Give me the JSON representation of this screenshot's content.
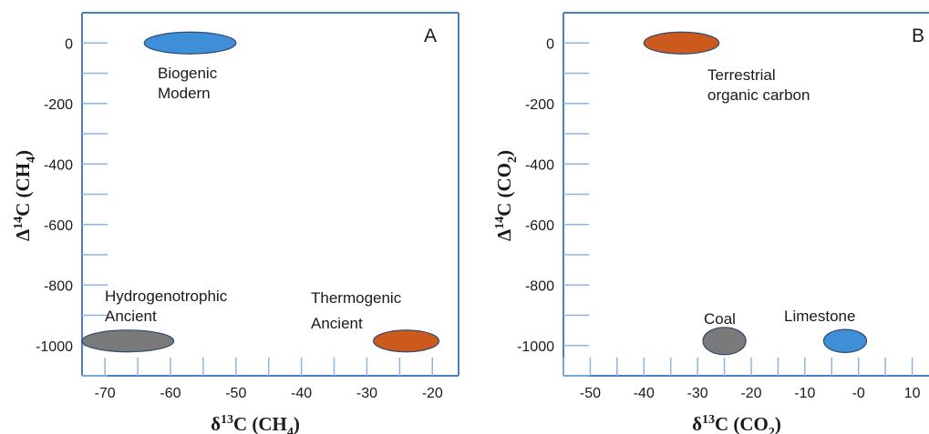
{
  "chart_data": [
    {
      "type": "scatter",
      "panel_label": "A",
      "xlabel": {
        "main": "δ",
        "sup": "13",
        "rest": "C (CH",
        "sub": "4",
        "end": ")"
      },
      "ylabel": {
        "main": "Δ",
        "sup": "14",
        "rest": "C (CH",
        "sub": "4",
        "end": ")"
      },
      "xlim": [
        -73.5,
        -16
      ],
      "ylim": [
        -1100,
        100
      ],
      "x_ticks": [
        -70,
        -60,
        -50,
        -40,
        -30,
        -20
      ],
      "y_ticks": [
        0,
        -200,
        -400,
        -600,
        -800,
        -1000
      ],
      "regions": [
        {
          "label": [
            "Biogenic",
            "Modern"
          ],
          "x": -57,
          "y": 0,
          "x_halfwidth": 7,
          "y_halfwidth": 36,
          "color": "#3f8fd8"
        },
        {
          "label": [
            "Hydrogenotrophic",
            "Ancient"
          ],
          "x": -66.5,
          "y": -985,
          "x_halfwidth": 7,
          "y_halfwidth": 36,
          "color": "#7a7a7a"
        },
        {
          "label": [
            "Thermogenic",
            "Ancient"
          ],
          "x": -24,
          "y": -985,
          "x_halfwidth": 5,
          "y_halfwidth": 36,
          "color": "#cc5a1e"
        }
      ]
    },
    {
      "type": "scatter",
      "panel_label": "B",
      "xlabel": {
        "main": "δ",
        "sup": "13",
        "rest": "C (CO",
        "sub": "2",
        "end": ")"
      },
      "ylabel": {
        "main": "Δ",
        "sup": "14",
        "rest": "C (CO",
        "sub": "2",
        "end": ")"
      },
      "xlim": [
        -55,
        15
      ],
      "ylim": [
        -1100,
        100
      ],
      "x_ticks": [
        -50,
        -40,
        -30,
        -20,
        -10,
        0,
        10
      ],
      "x_tick_labels": [
        "-50",
        "-40",
        "-30",
        "-20",
        "-10",
        "-0",
        "10"
      ],
      "y_ticks": [
        0,
        -200,
        -400,
        -600,
        -800,
        -1000
      ],
      "regions": [
        {
          "label": [
            "Terrestrial",
            "organic carbon"
          ],
          "x": -33,
          "y": 0,
          "x_halfwidth": 7,
          "y_halfwidth": 36,
          "color": "#cc5a1e"
        },
        {
          "label": [
            "Coal"
          ],
          "x": -25,
          "y": -985,
          "x_halfwidth": 4,
          "y_halfwidth": 45,
          "color": "#7a7a7a"
        },
        {
          "label": [
            "Limestone"
          ],
          "x": -2.5,
          "y": -985,
          "x_halfwidth": 4,
          "y_halfwidth": 38,
          "color": "#3f8fd8"
        }
      ]
    }
  ]
}
